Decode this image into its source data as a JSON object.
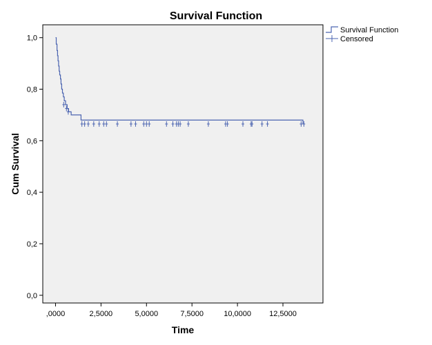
{
  "chart_data": {
    "type": "line",
    "title": "Survival Function",
    "xlabel": "Time",
    "ylabel": "Cum Survival",
    "xlim": [
      -700,
      14700
    ],
    "ylim": [
      -0.03,
      1.05
    ],
    "x_ticks": [
      {
        "value": 0,
        "label": ",0000"
      },
      {
        "value": 2500,
        "label": "2,5000"
      },
      {
        "value": 5000,
        "label": "5,0000"
      },
      {
        "value": 7500,
        "label": "7,5000"
      },
      {
        "value": 10000,
        "label": "10,0000"
      },
      {
        "value": 12500,
        "label": "12,5000"
      }
    ],
    "y_ticks": [
      {
        "value": 0.0,
        "label": "0,0"
      },
      {
        "value": 0.2,
        "label": "0,2"
      },
      {
        "value": 0.4,
        "label": "0,4"
      },
      {
        "value": 0.6,
        "label": "0,6"
      },
      {
        "value": 0.8,
        "label": "0,8"
      },
      {
        "value": 1.0,
        "label": "1,0"
      }
    ],
    "grid": false,
    "legend_position": "top-right",
    "legend": [
      {
        "name": "Survival Function",
        "symbol": "step"
      },
      {
        "name": "Censored",
        "symbol": "plus"
      }
    ],
    "colors": {
      "line": "#4a63b0",
      "plot_bg": "#f0f0f0",
      "axis": "#000000"
    },
    "series": [
      {
        "name": "Survival Function",
        "type": "step",
        "x": [
          0,
          40,
          80,
          110,
          140,
          170,
          200,
          230,
          270,
          300,
          340,
          380,
          430,
          480,
          550,
          640,
          720,
          860,
          1400,
          13600
        ],
        "y": [
          1.0,
          0.975,
          0.95,
          0.93,
          0.91,
          0.89,
          0.87,
          0.855,
          0.84,
          0.82,
          0.8,
          0.785,
          0.77,
          0.755,
          0.74,
          0.725,
          0.712,
          0.7,
          0.68,
          0.665
        ]
      },
      {
        "name": "Censored",
        "type": "marker",
        "x": [
          450,
          600,
          700,
          1450,
          1600,
          1800,
          2100,
          2400,
          2650,
          2800,
          3400,
          4150,
          4400,
          4850,
          5000,
          5150,
          6100,
          6450,
          6650,
          6750,
          6850,
          7300,
          8400,
          9350,
          9450,
          10300,
          10750,
          10800,
          11350,
          11650,
          13500,
          13650
        ],
        "y": [
          0.74,
          0.725,
          0.712,
          0.665,
          0.665,
          0.665,
          0.665,
          0.665,
          0.665,
          0.665,
          0.665,
          0.665,
          0.665,
          0.665,
          0.665,
          0.665,
          0.665,
          0.665,
          0.665,
          0.665,
          0.665,
          0.665,
          0.665,
          0.665,
          0.665,
          0.665,
          0.665,
          0.665,
          0.665,
          0.665,
          0.665,
          0.665
        ]
      }
    ]
  }
}
